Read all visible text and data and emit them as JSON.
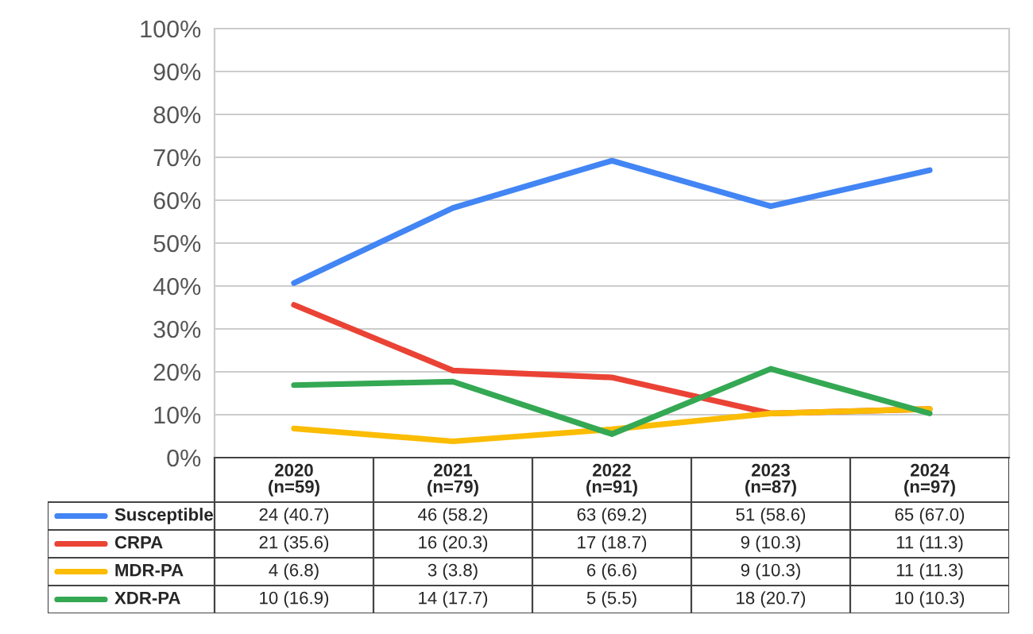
{
  "chart_data": {
    "type": "line",
    "categories": [
      "2020\n(n=59)",
      "2021\n(n=79)",
      "2022\n(n=91)",
      "2023\n(n=87)",
      "2024\n(n=97)"
    ],
    "series": [
      {
        "name": "Susceptible",
        "color": "#4285f4",
        "values": [
          40.7,
          58.2,
          69.2,
          58.6,
          67.0
        ],
        "value_labels": [
          "24 (40.7)",
          "46 (58.2)",
          "63 (69.2)",
          "51 (58.6)",
          "65 (67.0)"
        ]
      },
      {
        "name": "CRPA",
        "color": "#ea4335",
        "values": [
          35.6,
          20.3,
          18.7,
          10.3,
          11.3
        ],
        "value_labels": [
          "21 (35.6)",
          "16 (20.3)",
          "17 (18.7)",
          "9 (10.3)",
          "11 (11.3)"
        ]
      },
      {
        "name": "MDR-PA",
        "color": "#fbbc04",
        "values": [
          6.8,
          3.8,
          6.6,
          10.3,
          11.3
        ],
        "value_labels": [
          "4 (6.8)",
          "3 (3.8)",
          "6 (6.6)",
          "9 (10.3)",
          "11 (11.3)"
        ]
      },
      {
        "name": "XDR-PA",
        "color": "#34a853",
        "values": [
          16.9,
          17.7,
          5.5,
          20.7,
          10.3
        ],
        "value_labels": [
          "10 (16.9)",
          "14 (17.7)",
          "5 (5.5)",
          "18 (20.7)",
          "10 (10.3)"
        ]
      }
    ],
    "ylim": [
      0,
      100
    ],
    "yticks": [
      {
        "value": 0,
        "label": "0%"
      },
      {
        "value": 10,
        "label": "10%"
      },
      {
        "value": 20,
        "label": "20%"
      },
      {
        "value": 30,
        "label": "30%"
      },
      {
        "value": 40,
        "label": "40%"
      },
      {
        "value": 50,
        "label": "50%"
      },
      {
        "value": 60,
        "label": "60%"
      },
      {
        "value": 70,
        "label": "70%"
      },
      {
        "value": 80,
        "label": "80%"
      },
      {
        "value": 90,
        "label": "90%"
      },
      {
        "value": 100,
        "label": "100%"
      }
    ],
    "grid": "y",
    "legend": "bottom left",
    "marker": "none",
    "line_style": "solid"
  }
}
